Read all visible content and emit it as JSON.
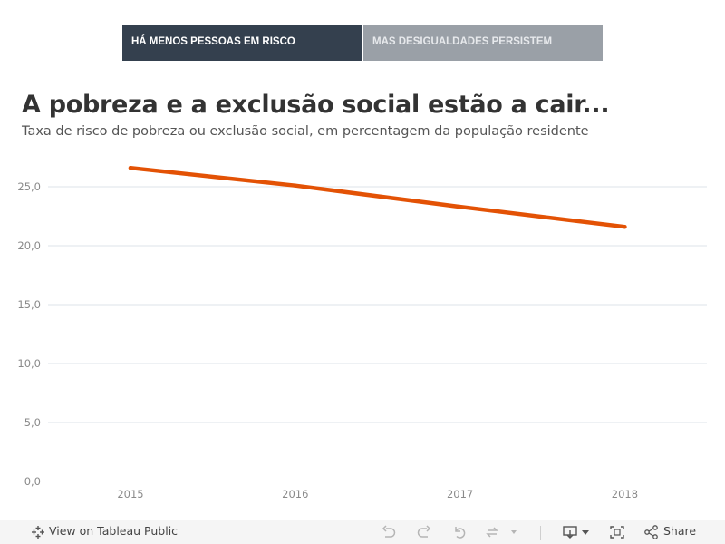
{
  "tabs": [
    {
      "label": "HÁ MENOS PESSOAS EM RISCO"
    },
    {
      "label": "MAS DESIGUALDADES PERSISTEM"
    }
  ],
  "title": "A pobreza e a exclusão social estão a cair...",
  "subtitle": "Taxa de risco de pobreza ou exclusão social, em percentagem da população residente",
  "chart_data": {
    "type": "line",
    "categories": [
      "2015",
      "2016",
      "2017",
      "2018"
    ],
    "series": [
      {
        "values": [
          26.6,
          25.1,
          23.3,
          21.6
        ],
        "color": "#e35205"
      }
    ],
    "ylim": [
      0,
      30
    ],
    "yticks": [
      "0,0",
      "5,0",
      "10,0",
      "15,0",
      "20,0",
      "25,0"
    ],
    "grid": true,
    "xlabel": "",
    "ylabel": ""
  },
  "toolbar": {
    "view_label": "View on Tableau Public",
    "share_label": "Share"
  }
}
